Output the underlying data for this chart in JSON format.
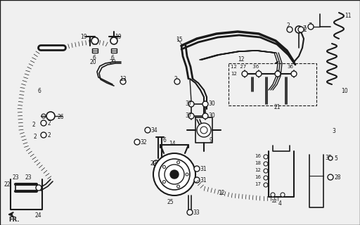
{
  "bg_color": "#f0f0f0",
  "fig_width": 5.12,
  "fig_height": 3.2,
  "dpi": 100,
  "lc": "#1a1a1a",
  "tc": "#1a1a1a",
  "gray": "#888888"
}
